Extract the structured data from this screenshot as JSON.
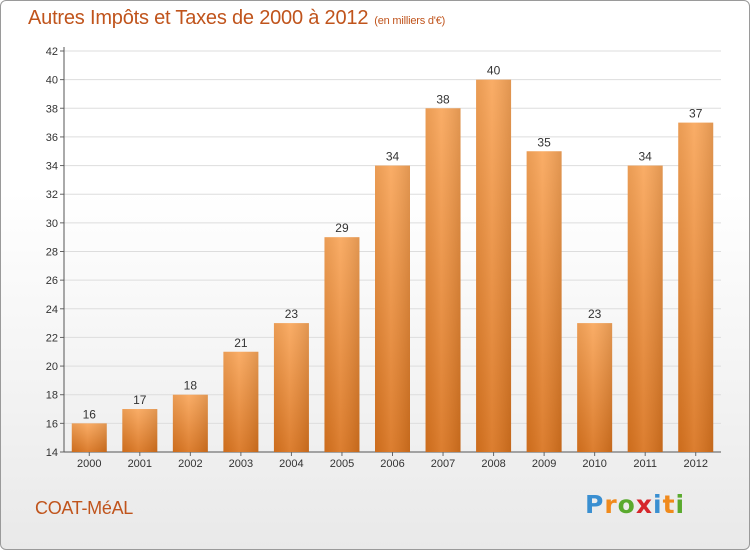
{
  "title": "Autres Impôts et Taxes de 2000 à 2012",
  "subtitle": "(en milliers d'€)",
  "place": "COAT-MéAL",
  "logo": {
    "text": "Proxiti",
    "colors": [
      "#3a8fd1",
      "#f08a1c",
      "#5aaa2e",
      "#d6262b",
      "#3a8fd1",
      "#f08a1c",
      "#5aaa2e"
    ]
  },
  "colors": {
    "bar_light": "#f9a65a",
    "bar_dark": "#d9731e",
    "text": "#c0541c",
    "grid": "#dddddd"
  },
  "chart_data": {
    "type": "bar",
    "categories": [
      "2000",
      "2001",
      "2002",
      "2003",
      "2004",
      "2005",
      "2006",
      "2007",
      "2008",
      "2009",
      "2010",
      "2011",
      "2012"
    ],
    "values": [
      16,
      17,
      18,
      21,
      23,
      29,
      34,
      38,
      40,
      35,
      23,
      34,
      37
    ],
    "data_labels": [
      "16",
      "17",
      "18",
      "21",
      "23",
      "29",
      "34",
      "38",
      "40",
      "35",
      "23",
      "34",
      "37"
    ],
    "yticks": [
      14,
      16,
      18,
      20,
      22,
      24,
      26,
      28,
      30,
      32,
      34,
      36,
      38,
      40,
      42
    ],
    "ylim": [
      14,
      42
    ],
    "title": "Autres Impôts et Taxes de 2000 à 2012",
    "xlabel": "",
    "ylabel": "",
    "grid": true
  }
}
